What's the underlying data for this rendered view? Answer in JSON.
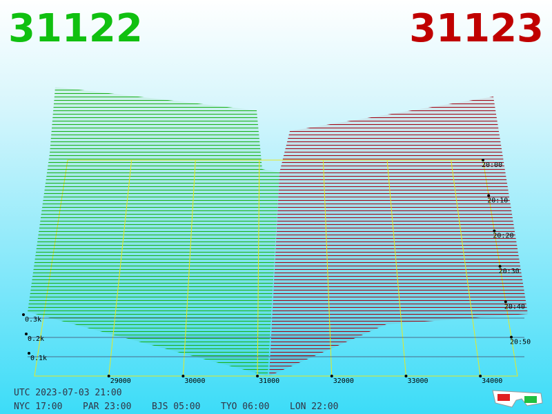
{
  "chart_data": {
    "type": "depth3d",
    "best_bid": 31122,
    "best_ask": 31123,
    "bid_color": "#10c010",
    "ask_color": "#c00000",
    "xlim": [
      28000,
      34500
    ],
    "xticks": [
      29000,
      30000,
      31000,
      32000,
      33000,
      34000
    ],
    "zticks": [
      {
        "value": 100,
        "label": "0.1k"
      },
      {
        "value": 200,
        "label": "0.2k"
      },
      {
        "value": 300,
        "label": "0.3k"
      }
    ],
    "time_ticks": [
      "20:00",
      "20:10",
      "20:20",
      "20:30",
      "20:40",
      "20:50"
    ],
    "timestamp": "UTC 2023-07-03 21:00",
    "clocks": [
      "NYC 17:00",
      "PAR 23:00",
      "BJS 05:00",
      "TYO 06:00",
      "LON 22:00"
    ]
  }
}
